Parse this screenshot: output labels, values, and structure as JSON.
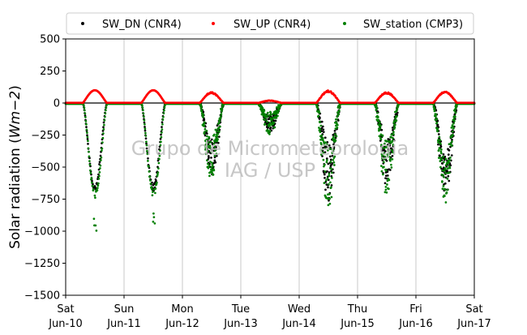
{
  "chart_data": {
    "type": "scatter",
    "ylabel_prefix": "Solar radiation (",
    "ylabel_math": "Wm−2",
    "ylabel_suffix": ")",
    "ylim": [
      -1500,
      500
    ],
    "yticks": [
      500,
      250,
      0,
      -250,
      -500,
      -750,
      -1000,
      -1250,
      -1500
    ],
    "ytick_labels": [
      "500",
      "250",
      "0",
      "−250",
      "−500",
      "−750",
      "−1000",
      "−1250",
      "−1500"
    ],
    "xlim": [
      "2019-06-10",
      "2019-06-17"
    ],
    "x_ticks": [
      {
        "day": "Sat",
        "date": "Jun-10"
      },
      {
        "day": "Sun",
        "date": "Jun-11"
      },
      {
        "day": "Mon",
        "date": "Jun-12"
      },
      {
        "day": "Tue",
        "date": "Jun-13"
      },
      {
        "day": "Wed",
        "date": "Jun-14"
      },
      {
        "day": "Thu",
        "date": "Jun-15"
      },
      {
        "day": "Fri",
        "date": "Jun-16"
      },
      {
        "day": "Sat",
        "date": "Jun-17"
      }
    ],
    "grid": "vertical",
    "zero_line": true,
    "legend_placement": "top",
    "watermark": [
      "Grupo de Micrometeorologia",
      "IAG / USP"
    ],
    "series": [
      {
        "name": "SW_DN (CNR4)",
        "color": "#000000",
        "daily_minimum": [
          -680,
          -670,
          -560,
          -230,
          -760,
          -660,
          -720
        ],
        "daytime_hours": [
          "07:00",
          "17:00"
        ]
      },
      {
        "name": "SW_UP (CNR4)",
        "color": "#ff0000",
        "daily_maximum": [
          100,
          100,
          85,
          20,
          100,
          85,
          90
        ],
        "daytime_hours": [
          "07:00",
          "17:00"
        ]
      },
      {
        "name": "SW_station (CMP3)",
        "color": "#008000",
        "daily_minimum": [
          -1000,
          -970,
          -590,
          -180,
          -800,
          -700,
          -780
        ],
        "daytime_hours": [
          "07:00",
          "17:00"
        ]
      }
    ]
  }
}
